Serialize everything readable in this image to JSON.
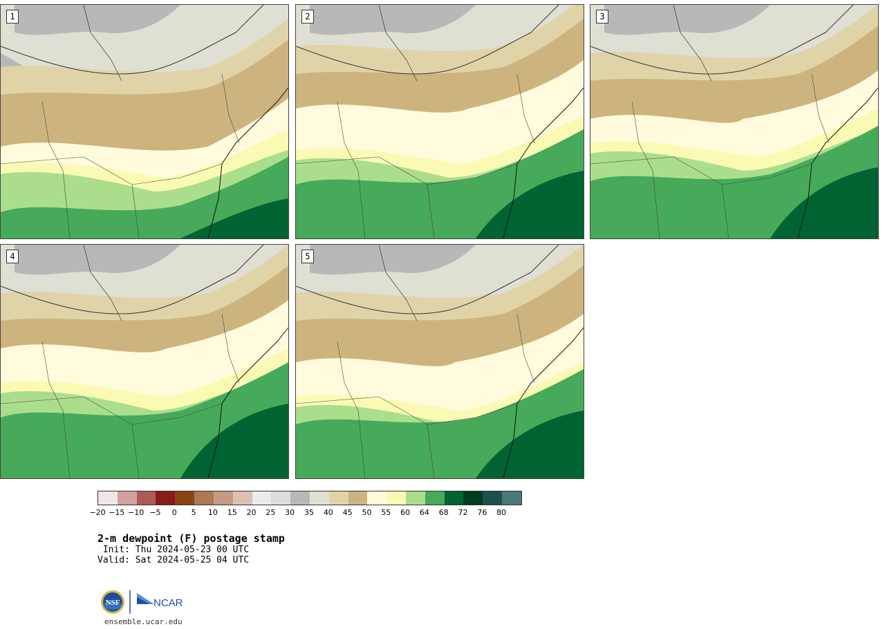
{
  "panels": [
    {
      "label": "1"
    },
    {
      "label": "2"
    },
    {
      "label": "3"
    },
    {
      "label": "4"
    },
    {
      "label": "5"
    }
  ],
  "colorbar": {
    "colors": [
      "#f1e6e6",
      "#d4a0a0",
      "#ad5a5a",
      "#8b1a1a",
      "#8b4513",
      "#ad7852",
      "#c49a82",
      "#dcc0b0",
      "#ececec",
      "#dcdcdc",
      "#b8b8b8",
      "#e0dfd3",
      "#e0d3a8",
      "#cdb47e",
      "#fffbdc",
      "#fafab4",
      "#aade8c",
      "#46aa5a",
      "#006432",
      "#003c1e",
      "#1e5050",
      "#4a7878"
    ],
    "tick_labels": [
      "−20",
      "−15",
      "−10",
      "−5",
      "0",
      "5",
      "10",
      "15",
      "20",
      "25",
      "30",
      "35",
      "40",
      "45",
      "50",
      "55",
      "60",
      "64",
      "68",
      "72",
      "76",
      "80"
    ]
  },
  "title": "2-m dewpoint (F) postage stamp",
  "init": " Init: Thu 2024-05-23 00 UTC",
  "valid": "Valid: Sat 2024-05-25 04 UTC",
  "logos": {
    "nsf": "NSF",
    "ncar": "NCAR"
  },
  "url": "ensemble.ucar.edu"
}
